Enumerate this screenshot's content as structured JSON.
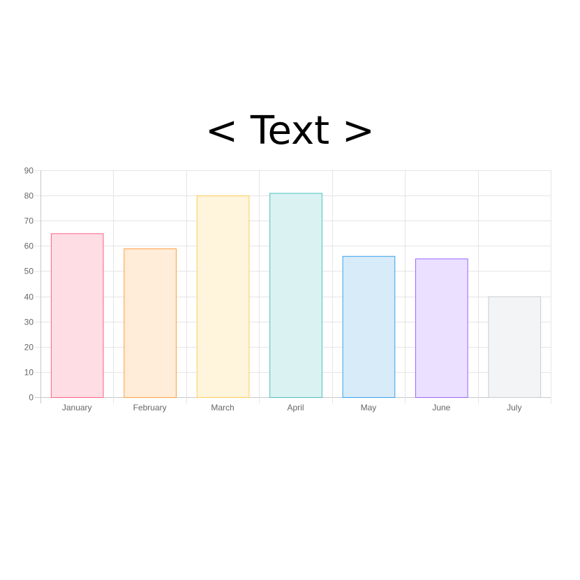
{
  "chart_data": {
    "type": "bar",
    "title": "< Text >",
    "categories": [
      "January",
      "February",
      "March",
      "April",
      "May",
      "June",
      "July"
    ],
    "values": [
      65,
      59,
      80,
      81,
      56,
      55,
      40
    ],
    "ylim": [
      0,
      90
    ],
    "ytick_step": 10,
    "xlabel": "",
    "ylabel": "",
    "grid": true,
    "legend": "none",
    "bar_fills": [
      "#ffdde4",
      "#ffecd9",
      "#fff4dc",
      "#dbf2f2",
      "#d8ebf8",
      "#ebe0ff",
      "#f3f4f5"
    ],
    "bar_borders": [
      "#ff6384",
      "#ff9f40",
      "#ffcd56",
      "#4bc0c0",
      "#36a2eb",
      "#9966ff",
      "#c9cbcf"
    ],
    "grid_color": "#e5e5e5",
    "axis_color": "#c8c8c8",
    "label_color": "#666666"
  }
}
